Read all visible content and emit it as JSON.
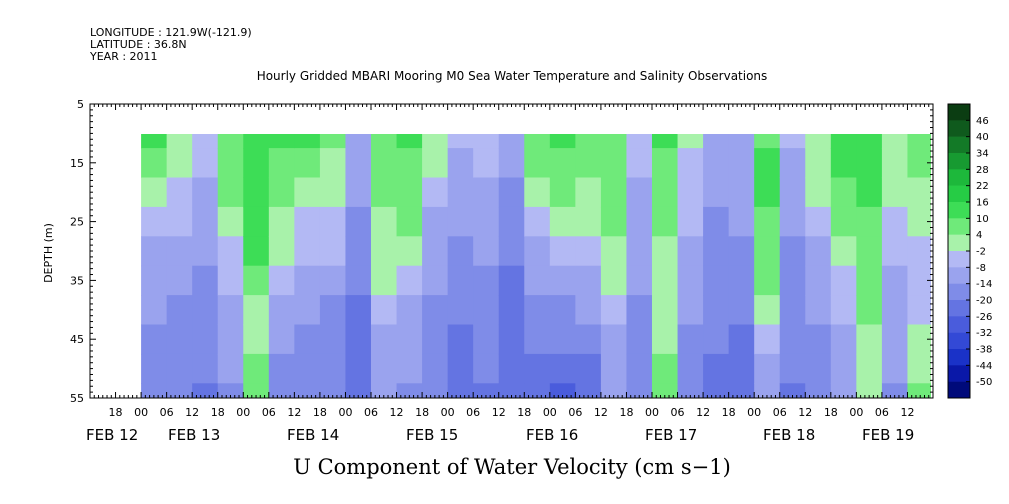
{
  "header": {
    "longitude": "LONGITUDE : 121.9W(-121.9)",
    "latitude": "LATITUDE : 36.8N",
    "year": "YEAR : 2011"
  },
  "chart_data": {
    "type": "heatmap",
    "title": "Hourly Gridded MBARI Mooring M0 Sea Water Temperature and Salinity Observations",
    "xlabel": "U Component of Water Velocity (cm s−1)",
    "ylabel": "DEPTH (m)",
    "y_range": [
      5,
      55
    ],
    "y_inverted": true,
    "y_ticks": [
      "5",
      "15",
      "25",
      "35",
      "45",
      "55"
    ],
    "data_depth_range": [
      10,
      55
    ],
    "x_range_hours": [
      "2011-02-11 12:00",
      "2011-02-19 18:00"
    ],
    "x_hour_ticks": [
      "18",
      "00",
      "06",
      "12",
      "18",
      "00",
      "06",
      "12",
      "18",
      "00",
      "06",
      "12",
      "18",
      "00",
      "06",
      "12",
      "18",
      "00",
      "06",
      "12",
      "18",
      "00",
      "06",
      "12",
      "18",
      "00",
      "06",
      "12",
      "18",
      "00",
      "06",
      "12"
    ],
    "x_date_labels": [
      "FEB 12",
      "FEB 13",
      "FEB 14",
      "FEB 15",
      "FEB 16",
      "FEB 17",
      "FEB 18",
      "FEB 19"
    ],
    "colorbar": {
      "labels": [
        "46",
        "40",
        "34",
        "28",
        "22",
        "16",
        "10",
        "4",
        "-2",
        "-8",
        "-14",
        "-20",
        "-26",
        "-32",
        "-38",
        "-44",
        "-50"
      ],
      "colors": [
        "#0b3d12",
        "#0f5a1d",
        "#137a27",
        "#179a31",
        "#1db83b",
        "#26cc45",
        "#3ddd56",
        "#6fea7a",
        "#a8f2aa",
        "#b3b9f4",
        "#9aa3ee",
        "#7f8ce8",
        "#6474e2",
        "#4a5cdc",
        "#3349d6",
        "#1a32c8",
        "#0a18a8",
        "#000a7a"
      ]
    },
    "value_range": [
      -50,
      46
    ],
    "time_columns": [
      {
        "day": "2011-02-12",
        "hour": 0
      },
      {
        "day": "2011-02-12",
        "hour": 6
      },
      {
        "day": "2011-02-12",
        "hour": 12
      },
      {
        "day": "2011-02-12",
        "hour": 18
      },
      {
        "day": "2011-02-13",
        "hour": 0
      },
      {
        "day": "2011-02-13",
        "hour": 6
      },
      {
        "day": "2011-02-13",
        "hour": 12
      },
      {
        "day": "2011-02-13",
        "hour": 18
      },
      {
        "day": "2011-02-14",
        "hour": 0
      },
      {
        "day": "2011-02-14",
        "hour": 6
      },
      {
        "day": "2011-02-14",
        "hour": 12
      },
      {
        "day": "2011-02-14",
        "hour": 18
      },
      {
        "day": "2011-02-15",
        "hour": 0
      },
      {
        "day": "2011-02-15",
        "hour": 6
      },
      {
        "day": "2011-02-15",
        "hour": 12
      },
      {
        "day": "2011-02-15",
        "hour": 18
      },
      {
        "day": "2011-02-16",
        "hour": 0
      },
      {
        "day": "2011-02-16",
        "hour": 6
      },
      {
        "day": "2011-02-16",
        "hour": 12
      },
      {
        "day": "2011-02-16",
        "hour": 18
      },
      {
        "day": "2011-02-17",
        "hour": 0
      },
      {
        "day": "2011-02-17",
        "hour": 6
      },
      {
        "day": "2011-02-17",
        "hour": 12
      },
      {
        "day": "2011-02-17",
        "hour": 18
      },
      {
        "day": "2011-02-18",
        "hour": 0
      },
      {
        "day": "2011-02-18",
        "hour": 6
      },
      {
        "day": "2011-02-18",
        "hour": 12
      },
      {
        "day": "2011-02-18",
        "hour": 18
      },
      {
        "day": "2011-02-19",
        "hour": 0
      },
      {
        "day": "2011-02-19",
        "hour": 6
      },
      {
        "day": "2011-02-19",
        "hour": 12
      }
    ],
    "depth_rows": [
      10,
      15,
      20,
      25,
      30,
      35,
      40,
      45,
      50,
      55
    ],
    "values": [
      [
        12,
        4,
        -4,
        10,
        14,
        12,
        12,
        6,
        -8,
        10,
        12,
        4,
        -6,
        -2,
        -10,
        10,
        14,
        8,
        10,
        -4,
        12,
        0,
        -8,
        -8,
        10,
        -6,
        4,
        14,
        16,
        4,
        8
      ],
      [
        8,
        2,
        -6,
        8,
        12,
        8,
        10,
        4,
        -10,
        8,
        10,
        0,
        -8,
        -6,
        -12,
        6,
        10,
        6,
        10,
        -6,
        10,
        -2,
        -10,
        -10,
        12,
        -8,
        2,
        12,
        14,
        2,
        6
      ],
      [
        4,
        -2,
        -8,
        6,
        14,
        6,
        4,
        2,
        -12,
        6,
        8,
        -4,
        -10,
        -8,
        -14,
        2,
        6,
        4,
        8,
        -8,
        8,
        -4,
        -12,
        -12,
        12,
        -10,
        0,
        10,
        12,
        0,
        4
      ],
      [
        -4,
        -6,
        -10,
        2,
        16,
        4,
        -2,
        -2,
        -14,
        4,
        6,
        -8,
        -12,
        -10,
        -16,
        -4,
        2,
        2,
        6,
        -10,
        6,
        -6,
        -14,
        -12,
        10,
        -12,
        -4,
        6,
        10,
        -2,
        2
      ],
      [
        -8,
        -10,
        -12,
        -2,
        12,
        2,
        -6,
        -6,
        -16,
        2,
        2,
        -10,
        -14,
        -12,
        -18,
        -8,
        -6,
        -2,
        4,
        -12,
        4,
        -8,
        -14,
        -14,
        8,
        -14,
        -8,
        2,
        8,
        -6,
        -2
      ],
      [
        -10,
        -12,
        -14,
        -6,
        6,
        -4,
        -10,
        -10,
        -18,
        0,
        -4,
        -12,
        -16,
        -14,
        -20,
        -12,
        -10,
        -8,
        2,
        -12,
        4,
        -10,
        -16,
        -16,
        6,
        -14,
        -10,
        -2,
        8,
        -8,
        -4
      ],
      [
        -12,
        -14,
        -16,
        -8,
        2,
        -8,
        -12,
        -14,
        -20,
        -4,
        -8,
        -14,
        -18,
        -16,
        -22,
        -16,
        -14,
        -12,
        -4,
        -14,
        2,
        -12,
        -18,
        -18,
        2,
        -16,
        -12,
        -6,
        6,
        -10,
        -6
      ],
      [
        -14,
        -16,
        -18,
        -10,
        4,
        -12,
        -14,
        -16,
        -22,
        -8,
        -10,
        -14,
        -20,
        -18,
        -24,
        -18,
        -18,
        -16,
        -8,
        -16,
        4,
        -14,
        -18,
        -20,
        -4,
        -18,
        -14,
        -8,
        4,
        -12,
        2
      ],
      [
        -14,
        -18,
        -18,
        -12,
        6,
        -14,
        -16,
        -18,
        -22,
        -10,
        -12,
        -14,
        -20,
        -18,
        -24,
        -20,
        -24,
        -22,
        -10,
        -16,
        6,
        -14,
        -20,
        -20,
        -8,
        -18,
        -16,
        -10,
        2,
        -12,
        4
      ],
      [
        -16,
        -18,
        -20,
        -14,
        6,
        -16,
        -16,
        -18,
        -22,
        -12,
        -14,
        -16,
        -22,
        -20,
        -24,
        -22,
        -26,
        -24,
        -12,
        -16,
        6,
        -16,
        -20,
        -22,
        -10,
        -20,
        -18,
        -12,
        0,
        -14,
        6
      ]
    ]
  }
}
